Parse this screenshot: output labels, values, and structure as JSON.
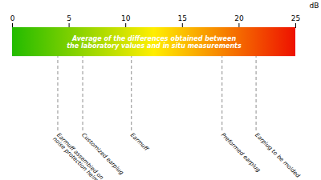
{
  "chart_data": {
    "type": "strip",
    "title": "Average of the differences obtained between\nthe laboratory values and in situ measurements",
    "x_label": "dB",
    "categories": [
      "Earmuff assembled on\nnoise protection helmet",
      "Customized earplug",
      "Earmuff",
      "Preformed earplug",
      "Earplug to be molded"
    ],
    "values": [
      4.0,
      6.2,
      10.5,
      18.5,
      21.5
    ],
    "xlim": [
      0,
      25
    ],
    "xticks": [
      0,
      5,
      10,
      15,
      20,
      25
    ],
    "color": [
      "#22bb00",
      "#ffee00",
      "#ee1100"
    ]
  }
}
